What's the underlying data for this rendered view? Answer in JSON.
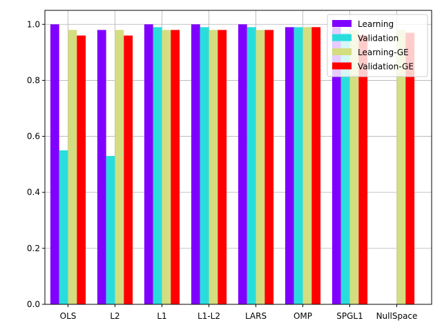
{
  "chart_data": {
    "type": "bar",
    "categories": [
      "OLS",
      "L2",
      "L1",
      "L1-L2",
      "LARS",
      "OMP",
      "SPGL1",
      "NullSpace"
    ],
    "series": [
      {
        "name": "Learning",
        "color": "#8000ff",
        "values": [
          1.0,
          0.98,
          1.0,
          1.0,
          1.0,
          0.99,
          0.99,
          null
        ]
      },
      {
        "name": "Validation",
        "color": "#2adddd",
        "values": [
          0.55,
          0.53,
          0.99,
          0.99,
          0.99,
          0.99,
          0.97,
          null
        ]
      },
      {
        "name": "Learning-GE",
        "color": "#d4dd80",
        "values": [
          0.98,
          0.98,
          0.98,
          0.98,
          0.98,
          0.99,
          0.98,
          0.98
        ]
      },
      {
        "name": "Validation-GE",
        "color": "#ff0000",
        "values": [
          0.96,
          0.96,
          0.98,
          0.98,
          0.98,
          0.99,
          0.96,
          0.97
        ]
      }
    ],
    "ylim": [
      0,
      1.05
    ],
    "yticks": [
      0.0,
      0.2,
      0.4,
      0.6,
      0.8,
      1.0
    ],
    "ytick_labels": [
      "0.0",
      "0.2",
      "0.4",
      "0.6",
      "0.8",
      "1.0"
    ],
    "grid": true,
    "legend_position": "top-right"
  }
}
